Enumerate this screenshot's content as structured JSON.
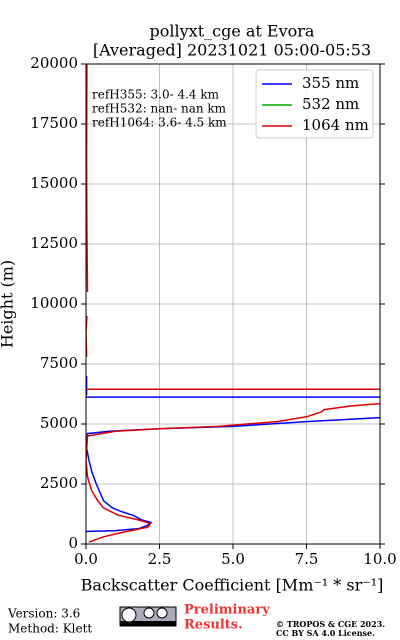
{
  "chart_data": {
    "type": "line",
    "title": "pollyxt_cge at Evora",
    "subtitle": "[Averaged] 20231021 05:00-05:53",
    "xlabel": "Backscatter Coefficient [Mm⁻¹ * sr⁻¹]",
    "ylabel": "Height (m)",
    "annotations": [
      "refH355:  3.0- 4.4 km",
      "refH532:  nan- nan km",
      "refH1064:  3.6- 4.5 km"
    ],
    "xlim": [
      0,
      10
    ],
    "ylim": [
      0,
      20000
    ],
    "xticks": [
      {
        "value": 0,
        "label": "0.0"
      },
      2.5,
      {
        "value": 5,
        "label": "5.0"
      },
      7.5,
      {
        "value": 10,
        "label": "10.0"
      }
    ],
    "yticks": [
      0,
      2500,
      5000,
      7500,
      10000,
      12500,
      15000,
      17500,
      20000
    ],
    "grid": true,
    "legend": "upper right",
    "series": [
      {
        "name": "355 nm",
        "color": "#0000ff",
        "values": [
          0.0,
          1.0,
          1.8,
          2.1,
          2.2,
          1.9,
          1.6,
          1.2,
          0.9,
          0.6,
          0.35,
          0.2,
          0.1,
          0.02,
          0.05,
          0.8,
          2.5,
          5.0,
          7.5,
          9.0,
          10.5,
          null,
          -1.0,
          11.0,
          null,
          0.02,
          0.02
        ],
        "height": [
          520,
          560,
          640,
          780,
          900,
          1000,
          1200,
          1350,
          1500,
          1800,
          2500,
          3000,
          3500,
          4000,
          4600,
          4700,
          4800,
          4900,
          5100,
          5200,
          5300,
          null,
          6120,
          6120,
          null,
          6200,
          7000
        ]
      },
      {
        "name": "532 nm",
        "color": "#00aa00",
        "values": [],
        "height": []
      },
      {
        "name": "1064 nm",
        "color": "#dd0000",
        "values": [
          0.1,
          0.6,
          1.3,
          2.1,
          2.2,
          1.8,
          1.1,
          0.6,
          0.4,
          0.2,
          0.05,
          0.0,
          0.05,
          1.0,
          2.5,
          4.5,
          6.5,
          7.5,
          8.0,
          8.1,
          9.0,
          10.5,
          null,
          -1.0,
          11.0,
          null,
          0.02,
          0.0,
          0.03,
          null,
          0.05,
          0.03,
          0.02,
          0.03
        ],
        "height": [
          80,
          300,
          500,
          700,
          850,
          1000,
          1200,
          1500,
          1800,
          2200,
          2800,
          3500,
          4500,
          4700,
          4800,
          4900,
          5100,
          5300,
          5500,
          5600,
          5750,
          5900,
          null,
          6450,
          6450,
          null,
          7800,
          8800,
          9500,
          null,
          10500,
          13000,
          16000,
          20000
        ]
      }
    ],
    "footer": {
      "version": "Version: 3.6",
      "method": "Method: Klett",
      "preliminary": "Preliminary",
      "results": "Results.",
      "copyright": "© TROPOS & CGE 2023.",
      "license": "CC BY SA 4.0 License."
    }
  }
}
